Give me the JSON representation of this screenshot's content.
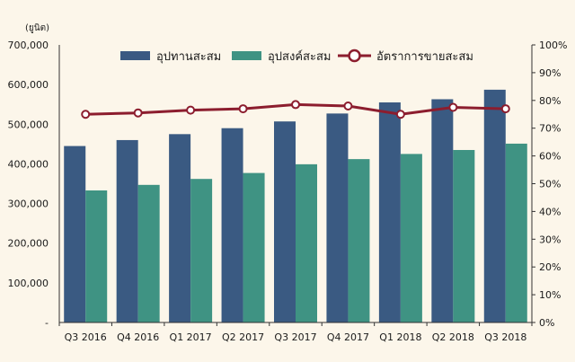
{
  "chart_data": {
    "type": "bar",
    "unit_label": "(ยูนิต)",
    "categories": [
      "Q3 2016",
      "Q4 2016",
      "Q1 2017",
      "Q2 2017",
      "Q3 2017",
      "Q4 2017",
      "Q1 2018",
      "Q2 2018",
      "Q3 2018"
    ],
    "series": [
      {
        "name": "อุปทานสะสม",
        "type": "bar",
        "axis": "left",
        "color": "#3a5a82",
        "values": [
          445000,
          460000,
          475000,
          490000,
          507000,
          527000,
          555000,
          563000,
          587000
        ]
      },
      {
        "name": "อุปสงค์สะสม",
        "type": "bar",
        "axis": "left",
        "color": "#3f9383",
        "values": [
          333000,
          347000,
          362000,
          377000,
          399000,
          412000,
          425000,
          435000,
          451000
        ]
      },
      {
        "name": "อัตราการขายสะสม",
        "type": "line",
        "axis": "right",
        "color": "#8c1d2e",
        "values": [
          0.75,
          0.755,
          0.765,
          0.77,
          0.785,
          0.78,
          0.75,
          0.775,
          0.77
        ]
      }
    ],
    "y_left": {
      "min": 0,
      "max": 700000,
      "step": 100000,
      "tick_labels": [
        "-",
        "100,000",
        "200,000",
        "300,000",
        "400,000",
        "500,000",
        "600,000",
        "700,000"
      ]
    },
    "y_right": {
      "min": 0,
      "max": 1,
      "step": 0.1,
      "tick_labels": [
        "0%",
        "10%",
        "20%",
        "30%",
        "40%",
        "50%",
        "60%",
        "70%",
        "80%",
        "90%",
        "100%"
      ]
    },
    "grid": false,
    "legend_position": "top"
  },
  "colors": {
    "background": "#fcf6ea",
    "axis": "#333333"
  }
}
